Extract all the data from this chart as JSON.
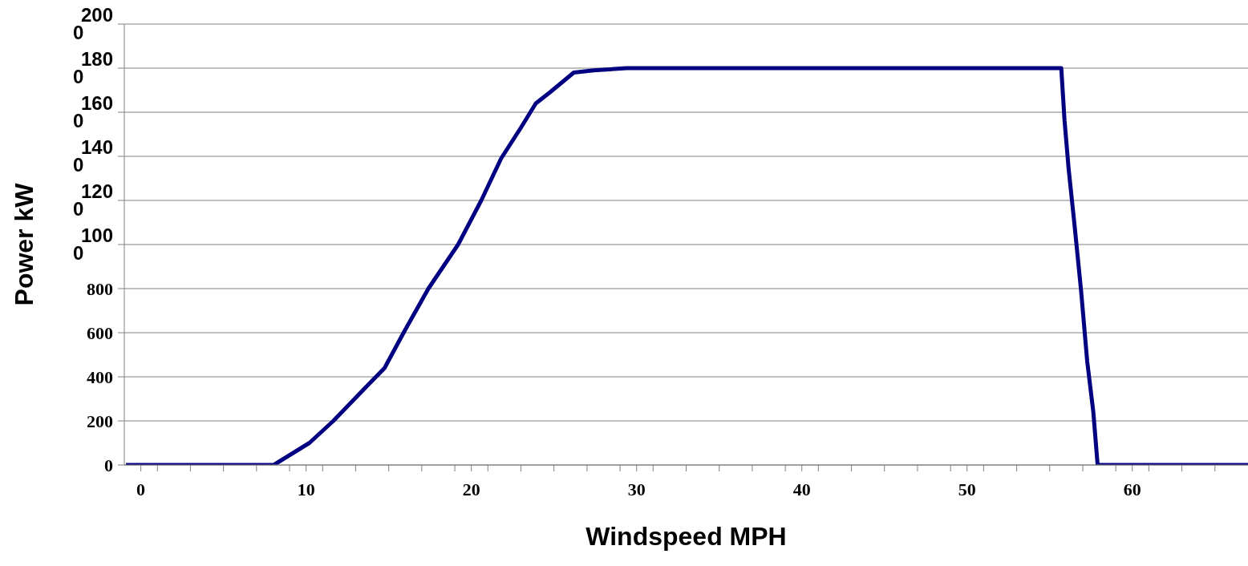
{
  "chart_data": {
    "type": "line",
    "xlabel": "Windspeed MPH",
    "ylabel": "Power kW",
    "x": [
      -0.9,
      0,
      2,
      4,
      6,
      8.04,
      10.2,
      11.65,
      13.45,
      14.75,
      15.9,
      17.4,
      19.2,
      20.6,
      21.8,
      23.0,
      23.9,
      24.75,
      26.2,
      27.4,
      29.4,
      35,
      45,
      55.7,
      55.9,
      56.15,
      56.5,
      56.9,
      57.27,
      57.64,
      57.9,
      60,
      64,
      67
    ],
    "series": [
      {
        "color": "#000080",
        "values": [
          0,
          0,
          0,
          0,
          0,
          0,
          100,
          200,
          340,
          440,
          600,
          800,
          1000,
          1200,
          1390,
          1530,
          1640,
          1690,
          1780,
          1790,
          1800,
          1800,
          1800,
          1800,
          1560,
          1340,
          1090,
          790,
          470,
          240,
          0,
          0,
          0,
          0
        ]
      }
    ],
    "xlim": [
      -1,
      67
    ],
    "xticks": [
      0,
      {
        "value": 1,
        "label": null
      },
      {
        "value": 3,
        "label": null
      },
      {
        "value": 5,
        "label": null
      },
      {
        "value": 7,
        "label": null
      },
      {
        "value": 9,
        "label": null
      },
      10,
      {
        "value": 11,
        "label": null
      },
      {
        "value": 13,
        "label": null
      },
      {
        "value": 15,
        "label": null
      },
      {
        "value": 17,
        "label": null
      },
      {
        "value": 19,
        "label": null
      },
      20,
      {
        "value": 21,
        "label": null
      },
      {
        "value": 23,
        "label": null
      },
      {
        "value": 25,
        "label": null
      },
      {
        "value": 27,
        "label": null
      },
      {
        "value": 29,
        "label": null
      },
      30,
      {
        "value": 31,
        "label": null
      },
      {
        "value": 33,
        "label": null
      },
      {
        "value": 35,
        "label": null
      },
      {
        "value": 37,
        "label": null
      },
      {
        "value": 39,
        "label": null
      },
      40,
      {
        "value": 41,
        "label": null
      },
      {
        "value": 43,
        "label": null
      },
      {
        "value": 45,
        "label": null
      },
      {
        "value": 47,
        "label": null
      },
      {
        "value": 49,
        "label": null
      },
      50,
      {
        "value": 51,
        "label": null
      },
      {
        "value": 53,
        "label": null
      },
      {
        "value": 55,
        "label": null
      },
      {
        "value": 57,
        "label": null
      },
      {
        "value": 59,
        "label": null
      },
      60,
      {
        "value": 61,
        "label": null
      },
      {
        "value": 63,
        "label": null
      },
      {
        "value": 65,
        "label": null
      }
    ],
    "ylim": [
      0,
      2000
    ],
    "yticks": [
      0,
      200,
      400,
      600,
      800,
      1000,
      1200,
      1400,
      1600,
      1800,
      2000
    ],
    "grid": "y",
    "legend": false,
    "line_style": "solid"
  }
}
